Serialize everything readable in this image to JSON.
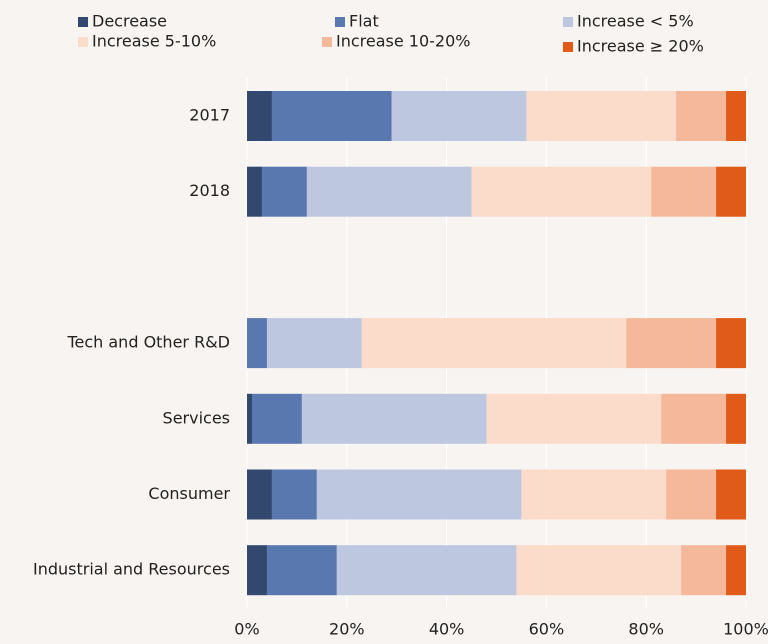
{
  "chart_data": {
    "type": "stacked-barh",
    "categories": [
      "2017",
      "2018",
      null,
      "Tech and Other R&D",
      "Services",
      "Consumer",
      "Industrial and Resources"
    ],
    "series": [
      {
        "name": "Decrease",
        "color": "#33486e",
        "values": [
          5,
          3,
          null,
          0,
          1,
          5,
          4
        ]
      },
      {
        "name": "Flat",
        "color": "#5a78b0",
        "values": [
          24,
          9,
          null,
          4,
          10,
          9,
          14
        ]
      },
      {
        "name": "Increase < 5%",
        "color": "#bdc8e0",
        "values": [
          27,
          33,
          null,
          19,
          37,
          41,
          36
        ]
      },
      {
        "name": "Increase 5-10%",
        "color": "#fbdccb",
        "values": [
          30,
          36,
          null,
          53,
          35,
          29,
          33
        ]
      },
      {
        "name": "Increase 10-20%",
        "color": "#f6b89a",
        "values": [
          10,
          13,
          null,
          18,
          13,
          10,
          9
        ]
      },
      {
        "name": "Increase ≥ 20%",
        "color": "#e05a1a",
        "values": [
          4,
          6,
          null,
          6,
          4,
          6,
          4
        ]
      }
    ],
    "xlim": [
      0,
      100
    ],
    "xticks": [
      {
        "value": 0,
        "label": "0%"
      },
      {
        "value": 20,
        "label": "20%"
      },
      {
        "value": 40,
        "label": "40%"
      },
      {
        "value": 60,
        "label": "60%"
      },
      {
        "value": 80,
        "label": "80%"
      },
      {
        "value": 100,
        "label": "100%"
      }
    ],
    "grid": true,
    "legend": "top"
  }
}
